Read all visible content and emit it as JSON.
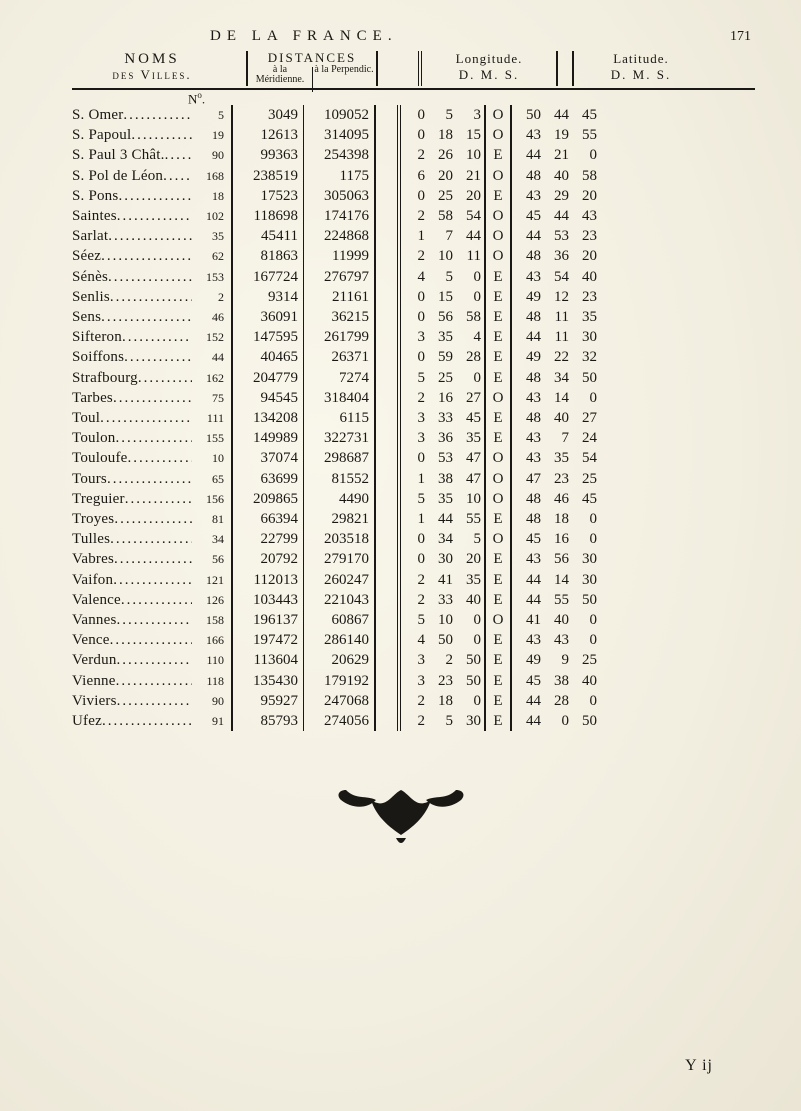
{
  "running_head": {
    "title": "DE LA FRANCE.",
    "page_number": "171"
  },
  "column_heads": {
    "noms_line1": "NOMS",
    "noms_line2": "des Villes.",
    "dist_top": "DISTANCES",
    "dist_left": "à la\nMéridienne.",
    "dist_right": "à la\nPerpendic.",
    "long_top": "Longitude.",
    "dms": "D.  M.  S.",
    "lat_top": "Latitude."
  },
  "no_label": "N",
  "no_sup": "o",
  "signature": "Y ij",
  "rows": [
    {
      "name": "S. Omer",
      "ord": "5",
      "merid": "3049",
      "perp": "109052",
      "lD": "0",
      "lM": "5",
      "lS": "3",
      "hemi": "O",
      "LD": "50",
      "LM": "44",
      "LS": "45"
    },
    {
      "name": "S. Papoul",
      "ord": "19",
      "merid": "12613",
      "perp": "314095",
      "lD": "0",
      "lM": "18",
      "lS": "15",
      "hemi": "O",
      "LD": "43",
      "LM": "19",
      "LS": "55"
    },
    {
      "name": "S. Paul 3 Chât.",
      "ord": "90",
      "merid": "99363",
      "perp": "254398",
      "lD": "2",
      "lM": "26",
      "lS": "10",
      "hemi": "E",
      "LD": "44",
      "LM": "21",
      "LS": "0"
    },
    {
      "name": "S. Pol de Léon",
      "ord": "168",
      "merid": "238519",
      "perp": "1175",
      "lD": "6",
      "lM": "20",
      "lS": "21",
      "hemi": "O",
      "LD": "48",
      "LM": "40",
      "LS": "58"
    },
    {
      "name": "S. Pons",
      "ord": "18",
      "merid": "17523",
      "perp": "305063",
      "lD": "0",
      "lM": "25",
      "lS": "20",
      "hemi": "E",
      "LD": "43",
      "LM": "29",
      "LS": "20"
    },
    {
      "name": "Saintes",
      "ord": "102",
      "merid": "118698",
      "perp": "174176",
      "lD": "2",
      "lM": "58",
      "lS": "54",
      "hemi": "O",
      "LD": "45",
      "LM": "44",
      "LS": "43"
    },
    {
      "name": "Sarlat",
      "ord": "35",
      "merid": "45411",
      "perp": "224868",
      "lD": "1",
      "lM": "7",
      "lS": "44",
      "hemi": "O",
      "LD": "44",
      "LM": "53",
      "LS": "23"
    },
    {
      "name": "Séez",
      "ord": "62",
      "merid": "81863",
      "perp": "11999",
      "lD": "2",
      "lM": "10",
      "lS": "11",
      "hemi": "O",
      "LD": "48",
      "LM": "36",
      "LS": "20"
    },
    {
      "name": "Sénès",
      "ord": "153",
      "merid": "167724",
      "perp": "276797",
      "lD": "4",
      "lM": "5",
      "lS": "0",
      "hemi": "E",
      "LD": "43",
      "LM": "54",
      "LS": "40"
    },
    {
      "name": "Senlis",
      "ord": "2",
      "merid": "9314",
      "perp": "21161",
      "lD": "0",
      "lM": "15",
      "lS": "0",
      "hemi": "E",
      "LD": "49",
      "LM": "12",
      "LS": "23"
    },
    {
      "name": "Sens",
      "ord": "46",
      "merid": "36091",
      "perp": "36215",
      "lD": "0",
      "lM": "56",
      "lS": "58",
      "hemi": "E",
      "LD": "48",
      "LM": "11",
      "LS": "35"
    },
    {
      "name": "Sifteron",
      "ord": "152",
      "merid": "147595",
      "perp": "261799",
      "lD": "3",
      "lM": "35",
      "lS": "4",
      "hemi": "E",
      "LD": "44",
      "LM": "11",
      "LS": "30"
    },
    {
      "name": "Soiffons",
      "ord": "44",
      "merid": "40465",
      "perp": "26371",
      "lD": "0",
      "lM": "59",
      "lS": "28",
      "hemi": "E",
      "LD": "49",
      "LM": "22",
      "LS": "32"
    },
    {
      "name": "Strafbourg",
      "ord": "162",
      "merid": "204779",
      "perp": "7274",
      "lD": "5",
      "lM": "25",
      "lS": "0",
      "hemi": "E",
      "LD": "48",
      "LM": "34",
      "LS": "50"
    },
    {
      "name": "Tarbes",
      "ord": "75",
      "merid": "94545",
      "perp": "318404",
      "lD": "2",
      "lM": "16",
      "lS": "27",
      "hemi": "O",
      "LD": "43",
      "LM": "14",
      "LS": "0"
    },
    {
      "name": "Toul",
      "ord": "111",
      "merid": "134208",
      "perp": "6115",
      "lD": "3",
      "lM": "33",
      "lS": "45",
      "hemi": "E",
      "LD": "48",
      "LM": "40",
      "LS": "27"
    },
    {
      "name": "Toulon",
      "ord": "155",
      "merid": "149989",
      "perp": "322731",
      "lD": "3",
      "lM": "36",
      "lS": "35",
      "hemi": "E",
      "LD": "43",
      "LM": "7",
      "LS": "24"
    },
    {
      "name": "Touloufe",
      "ord": "10",
      "merid": "37074",
      "perp": "298687",
      "lD": "0",
      "lM": "53",
      "lS": "47",
      "hemi": "O",
      "LD": "43",
      "LM": "35",
      "LS": "54"
    },
    {
      "name": "Tours",
      "ord": "65",
      "merid": "63699",
      "perp": "81552",
      "lD": "1",
      "lM": "38",
      "lS": "47",
      "hemi": "O",
      "LD": "47",
      "LM": "23",
      "LS": "25"
    },
    {
      "name": "Treguier",
      "ord": "156",
      "merid": "209865",
      "perp": "4490",
      "lD": "5",
      "lM": "35",
      "lS": "10",
      "hemi": "O",
      "LD": "48",
      "LM": "46",
      "LS": "45"
    },
    {
      "name": "Troyes",
      "ord": "81",
      "merid": "66394",
      "perp": "29821",
      "lD": "1",
      "lM": "44",
      "lS": "55",
      "hemi": "E",
      "LD": "48",
      "LM": "18",
      "LS": "0"
    },
    {
      "name": "Tulles",
      "ord": "34",
      "merid": "22799",
      "perp": "203518",
      "lD": "0",
      "lM": "34",
      "lS": "5",
      "hemi": "O",
      "LD": "45",
      "LM": "16",
      "LS": "0"
    },
    {
      "name": "Vabres",
      "ord": "56",
      "merid": "20792",
      "perp": "279170",
      "lD": "0",
      "lM": "30",
      "lS": "20",
      "hemi": "E",
      "LD": "43",
      "LM": "56",
      "LS": "30"
    },
    {
      "name": "Vaifon",
      "ord": "121",
      "merid": "112013",
      "perp": "260247",
      "lD": "2",
      "lM": "41",
      "lS": "35",
      "hemi": "E",
      "LD": "44",
      "LM": "14",
      "LS": "30"
    },
    {
      "name": "Valence",
      "ord": "126",
      "merid": "103443",
      "perp": "221043",
      "lD": "2",
      "lM": "33",
      "lS": "40",
      "hemi": "E",
      "LD": "44",
      "LM": "55",
      "LS": "50"
    },
    {
      "name": "Vannes",
      "ord": "158",
      "merid": "196137",
      "perp": "60867",
      "lD": "5",
      "lM": "10",
      "lS": "0",
      "hemi": "O",
      "LD": "41",
      "LM": "40",
      "LS": "0"
    },
    {
      "name": "Vence",
      "ord": "166",
      "merid": "197472",
      "perp": "286140",
      "lD": "4",
      "lM": "50",
      "lS": "0",
      "hemi": "E",
      "LD": "43",
      "LM": "43",
      "LS": "0"
    },
    {
      "name": "Verdun",
      "ord": "110",
      "merid": "113604",
      "perp": "20629",
      "lD": "3",
      "lM": "2",
      "lS": "50",
      "hemi": "E",
      "LD": "49",
      "LM": "9",
      "LS": "25"
    },
    {
      "name": "Vienne",
      "ord": "118",
      "merid": "135430",
      "perp": "179192",
      "lD": "3",
      "lM": "23",
      "lS": "50",
      "hemi": "E",
      "LD": "45",
      "LM": "38",
      "LS": "40"
    },
    {
      "name": "Viviers",
      "ord": "90",
      "merid": "95927",
      "perp": "247068",
      "lD": "2",
      "lM": "18",
      "lS": "0",
      "hemi": "E",
      "LD": "44",
      "LM": "28",
      "LS": "0"
    },
    {
      "name": "Ufez",
      "ord": "91",
      "merid": "85793",
      "perp": "274056",
      "lD": "2",
      "lM": "5",
      "lS": "30",
      "hemi": "E",
      "LD": "44",
      "LM": "0",
      "LS": "50"
    }
  ]
}
